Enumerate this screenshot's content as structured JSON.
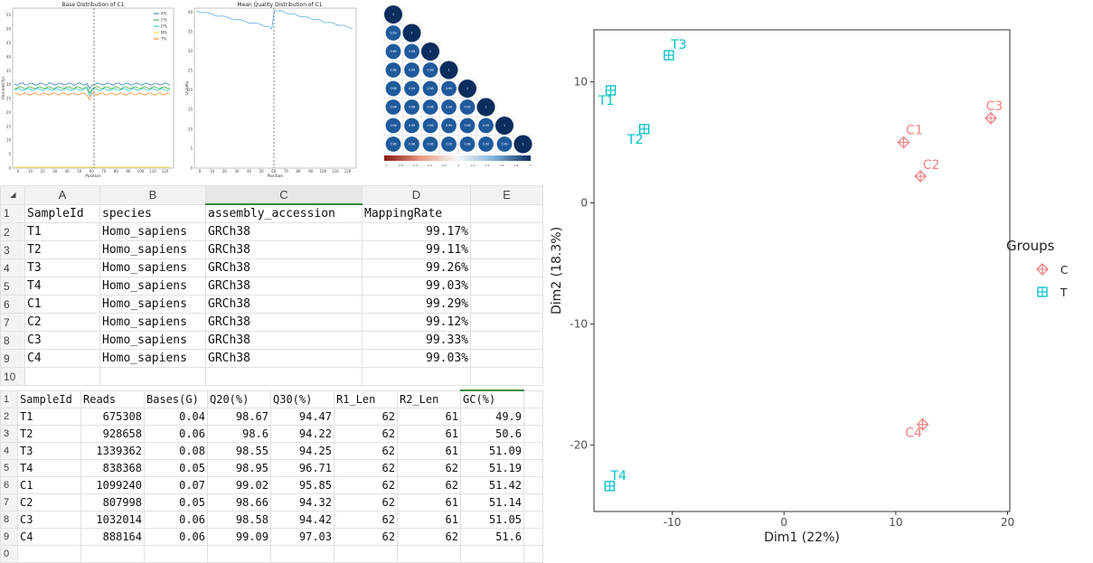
{
  "top_left_plots": {
    "base_distribution": {
      "title": "Base Distribution of C1",
      "ylabel": "Percent(%)",
      "xlabel": "Position",
      "x_ticks": [
        "0",
        "10",
        "20",
        "30",
        "40",
        "50",
        "60",
        "70",
        "80",
        "90",
        "100",
        "110",
        "120"
      ],
      "y_ticks": [
        "0",
        "5",
        "10",
        "15",
        "20",
        "25",
        "30",
        "35",
        "40",
        "45",
        "50",
        "55"
      ],
      "legend": [
        "A%",
        "C%",
        "G%",
        "N%",
        "T%"
      ],
      "colors": [
        "#1f77b4",
        "#2ca02c",
        "#17becf",
        "#ffd700",
        "#ff7f0e"
      ]
    },
    "quality_distribution": {
      "title": "Mean Quality Distribution of C1",
      "ylabel": "Quality",
      "xlabel": "Position",
      "x_ticks": [
        "0",
        "10",
        "20",
        "30",
        "40",
        "50",
        "60",
        "70",
        "80",
        "90",
        "100",
        "110",
        "120"
      ],
      "y_ticks": [
        "0",
        "5",
        "10",
        "15",
        "20",
        "25",
        "30",
        "35",
        "40"
      ],
      "color": "#5dade2"
    },
    "correlation": {
      "colorbar_ticks": [
        "-1",
        "-0.8",
        "-0.6",
        "-0.4",
        "-0.2",
        "0",
        "0.2",
        "0.4",
        "0.6",
        "0.8",
        "1"
      ],
      "rows": [
        {
          "cells": [
            "1"
          ]
        },
        {
          "cells": [
            "0.99",
            "1"
          ]
        },
        {
          "cells": [
            "0.99",
            "0.98",
            "1"
          ]
        },
        {
          "cells": [
            "0.98",
            "0.99",
            "0.98",
            "1"
          ]
        },
        {
          "cells": [
            "0.98",
            "0.99",
            "0.98",
            "0.99",
            "1"
          ]
        },
        {
          "cells": [
            "0.98",
            "0.98",
            "0.98",
            "0.98",
            "0.99",
            "1"
          ]
        },
        {
          "cells": [
            "0.98",
            "0.99",
            "0.98",
            "0.99",
            "0.98",
            "0.99",
            "1"
          ]
        },
        {
          "cells": [
            "0.98",
            "0.98",
            "0.98",
            "0.99",
            "0.98",
            "0.99",
            "0.99",
            "1"
          ]
        }
      ]
    }
  },
  "sheet1": {
    "col_headers": [
      "A",
      "B",
      "C",
      "D",
      "E"
    ],
    "row_numbers": [
      "1",
      "2",
      "3",
      "4",
      "5",
      "6",
      "7",
      "8",
      "9",
      "10"
    ],
    "header": [
      "SampleId",
      "species",
      "assembly_accession",
      "MappingRate"
    ],
    "rows": [
      [
        "T1",
        "Homo_sapiens",
        "GRCh38",
        "99.17%"
      ],
      [
        "T2",
        "Homo_sapiens",
        "GRCh38",
        "99.11%"
      ],
      [
        "T3",
        "Homo_sapiens",
        "GRCh38",
        "99.26%"
      ],
      [
        "T4",
        "Homo_sapiens",
        "GRCh38",
        "99.03%"
      ],
      [
        "C1",
        "Homo_sapiens",
        "GRCh38",
        "99.29%"
      ],
      [
        "C2",
        "Homo_sapiens",
        "GRCh38",
        "99.12%"
      ],
      [
        "C3",
        "Homo_sapiens",
        "GRCh38",
        "99.33%"
      ],
      [
        "C4",
        "Homo_sapiens",
        "GRCh38",
        "99.03%"
      ]
    ]
  },
  "sheet2": {
    "row_numbers": [
      "1",
      "2",
      "3",
      "4",
      "5",
      "6",
      "7",
      "8",
      "9",
      "0"
    ],
    "header": [
      "SampleId",
      "Reads",
      "Bases(G)",
      "Q20(%)",
      "Q30(%)",
      "R1_Len",
      "R2_Len",
      "GC(%)"
    ],
    "rows": [
      [
        "T1",
        "675308",
        "0.04",
        "98.67",
        "94.47",
        "62",
        "61",
        "49.9"
      ],
      [
        "T2",
        "928658",
        "0.06",
        "98.6",
        "94.22",
        "62",
        "61",
        "50.6"
      ],
      [
        "T3",
        "1339362",
        "0.08",
        "98.55",
        "94.25",
        "62",
        "61",
        "51.09"
      ],
      [
        "T4",
        "838368",
        "0.05",
        "98.95",
        "96.71",
        "62",
        "62",
        "51.19"
      ],
      [
        "C1",
        "1099240",
        "0.07",
        "99.02",
        "95.85",
        "62",
        "62",
        "51.42"
      ],
      [
        "C2",
        "807998",
        "0.05",
        "98.66",
        "94.32",
        "62",
        "61",
        "51.14"
      ],
      [
        "C3",
        "1032014",
        "0.06",
        "98.58",
        "94.42",
        "62",
        "61",
        "51.05"
      ],
      [
        "C4",
        "888164",
        "0.06",
        "99.09",
        "97.03",
        "62",
        "62",
        "51.6"
      ]
    ]
  },
  "chart_data": {
    "type": "scatter",
    "xlabel": "Dim1 (22%)",
    "ylabel": "Dim2 (18.3%)",
    "xlim": [
      -17,
      20.2
    ],
    "ylim": [
      -25.5,
      14.3
    ],
    "x_ticks": [
      -10,
      0,
      10,
      20
    ],
    "y_ticks": [
      10,
      0,
      -10,
      -20
    ],
    "grid": false,
    "legend_title": "Groups",
    "legend_position": "right",
    "series": [
      {
        "name": "C",
        "color": "#f08080",
        "marker": "diamond-plus",
        "points": [
          {
            "label": "C1",
            "x": 10.7,
            "y": 5.0
          },
          {
            "label": "C2",
            "x": 12.2,
            "y": 2.2
          },
          {
            "label": "C3",
            "x": 18.5,
            "y": 7.0
          },
          {
            "label": "C4",
            "x": 12.4,
            "y": -18.3
          }
        ]
      },
      {
        "name": "T",
        "color": "#00bfc4",
        "marker": "square-plus",
        "points": [
          {
            "label": "T1",
            "x": -15.5,
            "y": 9.3
          },
          {
            "label": "T2",
            "x": -12.5,
            "y": 6.1
          },
          {
            "label": "T3",
            "x": -10.3,
            "y": 12.2
          },
          {
            "label": "T4",
            "x": -15.6,
            "y": -23.4
          }
        ]
      }
    ]
  }
}
